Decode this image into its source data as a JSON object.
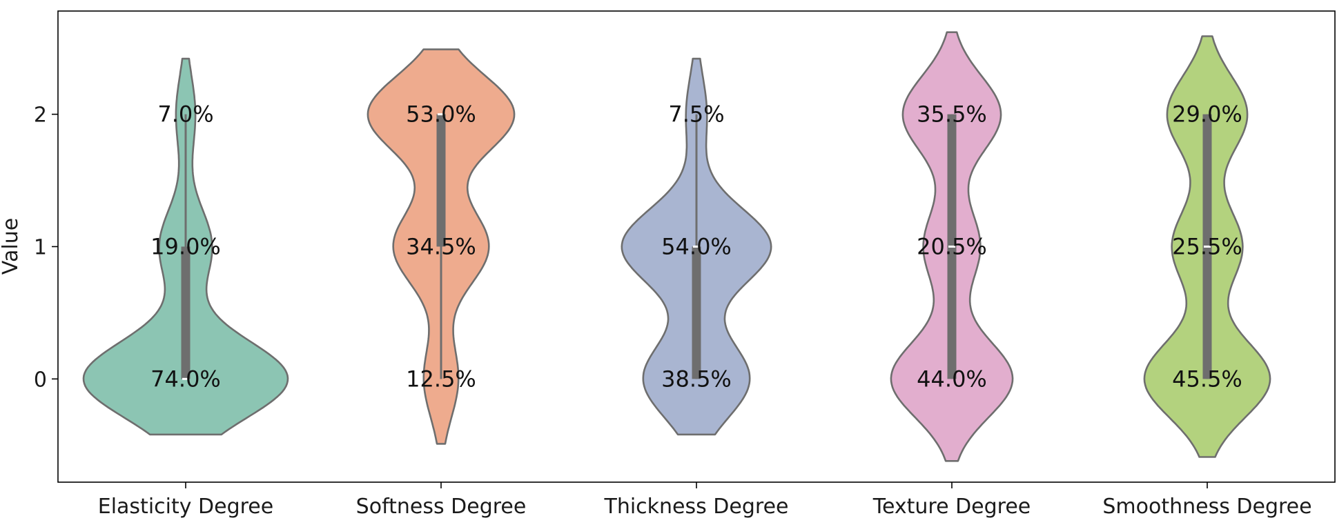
{
  "chart_data": {
    "type": "violin",
    "title": "",
    "xlabel": "",
    "ylabel": "Value",
    "ylim": [
      -0.78,
      2.78
    ],
    "yticks": [
      0,
      1,
      2
    ],
    "grid": false,
    "colors": [
      "#8cc5b3",
      "#eeab8e",
      "#a9b5d1",
      "#e2aece",
      "#b3d27e"
    ],
    "outline_color": "#6e6e6e",
    "categories": [
      "Elasticity Degree",
      "Softness Degree",
      "Thickness Degree",
      "Texture Degree",
      "Smoothness Degree"
    ],
    "series": [
      {
        "category": "Elasticity Degree",
        "value_levels": [
          0,
          1,
          2
        ],
        "percentages": [
          74.0,
          19.0,
          7.0
        ],
        "labels": [
          "74.0%",
          "19.0%",
          "7.0%"
        ],
        "range": [
          -0.42,
          2.42
        ],
        "quartiles": [
          0,
          0,
          1
        ],
        "median": 0
      },
      {
        "category": "Softness Degree",
        "value_levels": [
          0,
          1,
          2
        ],
        "percentages": [
          12.5,
          34.5,
          53.0
        ],
        "labels": [
          "12.5%",
          "34.5%",
          "53.0%"
        ],
        "range": [
          -0.49,
          2.49
        ],
        "quartiles": [
          1,
          2,
          2
        ],
        "median": 2
      },
      {
        "category": "Thickness Degree",
        "value_levels": [
          0,
          1,
          2
        ],
        "percentages": [
          38.5,
          54.0,
          7.5
        ],
        "labels": [
          "38.5%",
          "54.0%",
          "7.5%"
        ],
        "range": [
          -0.42,
          2.42
        ],
        "quartiles": [
          0,
          1,
          1
        ],
        "median": 1
      },
      {
        "category": "Texture Degree",
        "value_levels": [
          0,
          1,
          2
        ],
        "percentages": [
          44.0,
          20.5,
          35.5
        ],
        "labels": [
          "44.0%",
          "20.5%",
          "35.5%"
        ],
        "range": [
          -0.62,
          2.62
        ],
        "quartiles": [
          0,
          1,
          2
        ],
        "median": 1
      },
      {
        "category": "Smoothness Degree",
        "value_levels": [
          0,
          1,
          2
        ],
        "percentages": [
          45.5,
          25.5,
          29.0
        ],
        "labels": [
          "45.5%",
          "25.5%",
          "29.0%"
        ],
        "range": [
          -0.59,
          2.59
        ],
        "quartiles": [
          0,
          1,
          2
        ],
        "median": 1
      }
    ]
  }
}
